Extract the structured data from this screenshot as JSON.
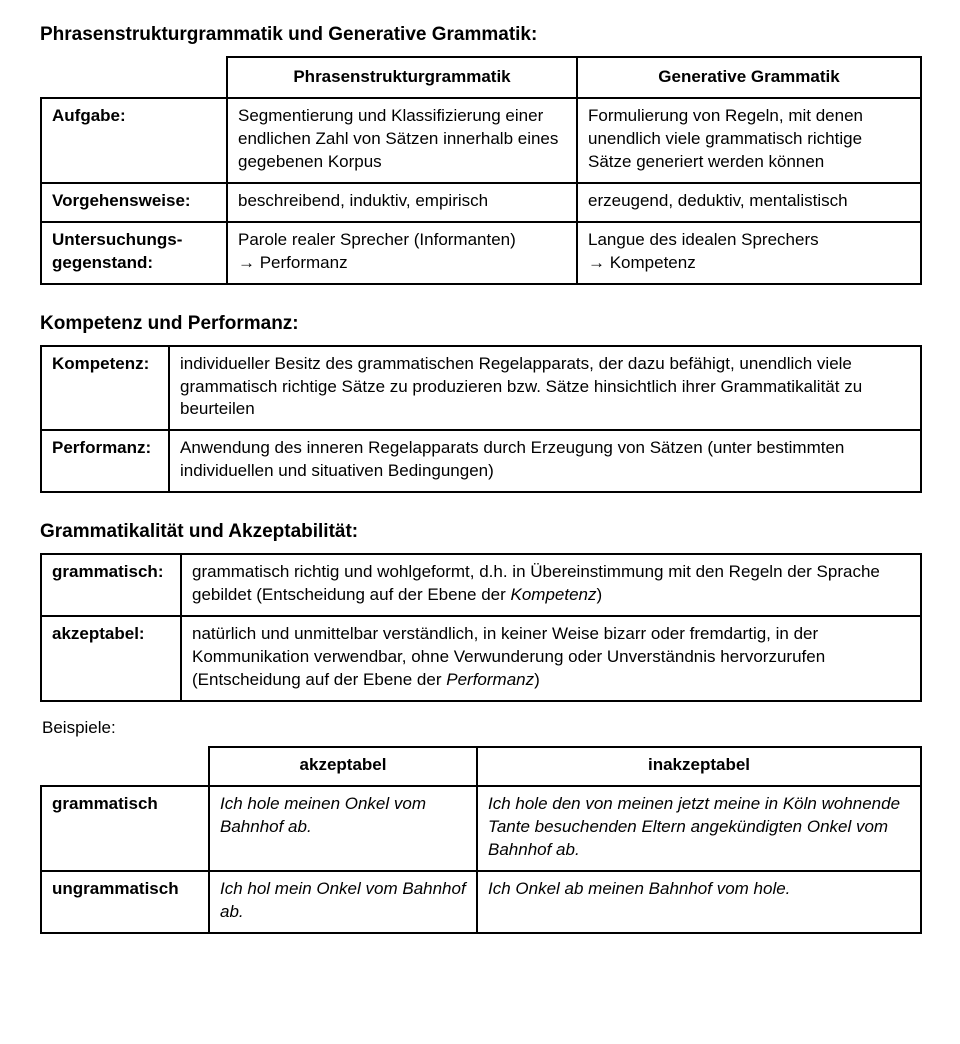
{
  "colors": {
    "text": "#000000",
    "background": "#ffffff",
    "border": "#000000"
  },
  "typography": {
    "family": "Trebuchet MS",
    "title_size_pt": 14,
    "body_size_pt": 12
  },
  "section1": {
    "title": "Phrasenstrukturgrammatik und Generative Grammatik:",
    "head_col2": "Phrasenstrukturgrammatik",
    "head_col3": "Generative Grammatik",
    "row1_label": "Aufgabe:",
    "row1_c2": "Segmentierung und Klassifizierung einer endlichen Zahl von Sätzen innerhalb eines gegebenen Korpus",
    "row1_c3": "Formulierung von Regeln, mit denen unendlich viele grammatisch richtige Sätze generiert werden können",
    "row2_label": "Vorgehensweise:",
    "row2_c2": "beschreibend, induktiv, empirisch",
    "row2_c3": "erzeugend, deduktiv, mentalistisch",
    "row3_label": "Untersuchungs­gegenstand:",
    "row3_c2_a": "Parole realer Sprecher (Informanten)",
    "row3_c2_b": "→ Performanz",
    "row3_c3_a": "Langue des idealen Sprechers",
    "row3_c3_b": "→ Kompetenz"
  },
  "section2": {
    "title": "Kompetenz und Performanz:",
    "row1_label": "Kompetenz:",
    "row1_text": "individueller Besitz des grammatischen Regelapparats, der dazu befähigt, unendlich viele grammatisch richtige Sätze zu produzieren bzw. Sätze hinsichtlich ihrer Grammatikalität zu beurteilen",
    "row2_label": "Performanz:",
    "row2_text": "Anwendung des inneren Regelapparats durch Erzeugung von Sätzen (unter bestimmten individuellen und situativen Bedingungen)"
  },
  "section3": {
    "title": "Grammatikalität und Akzeptabilität:",
    "row1_label": "grammatisch:",
    "row1_a": "grammatisch richtig und wohlgeformt, d.h. in Übereinstimmung mit den Regeln der Sprache gebildet (Entscheidung auf der Ebene der ",
    "row1_b_italic": "Kompetenz",
    "row1_c": ")",
    "row2_label": "akzeptabel:",
    "row2_a": "natürlich und unmittelbar verständlich, in keiner Weise bizarr oder fremdartig, in der Kommunikation verwendbar, ohne Verwunderung oder Unverständnis hervorzurufen (Entscheidung auf der Ebene der ",
    "row2_b_italic": "Performanz",
    "row2_c": ")"
  },
  "section4": {
    "examples_label": "Beispiele:",
    "head_c2": "akzeptabel",
    "head_c3": "inakzeptabel",
    "row1_label": "grammatisch",
    "row1_c2": "Ich hole meinen Onkel vom Bahnhof ab.",
    "row1_c3": "Ich hole den von meinen jetzt meine in Köln wohnende Tante besuchenden Eltern angekündigten Onkel vom Bahnhof ab.",
    "row2_label": "ungrammatisch",
    "row2_c2": "Ich hol mein Onkel vom Bahnhof ab.",
    "row2_c3": "Ich Onkel ab meinen Bahnhof vom hole."
  }
}
